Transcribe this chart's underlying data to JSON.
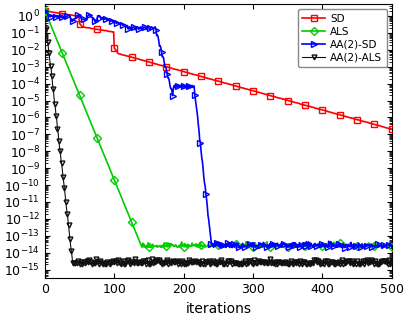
{
  "title": "",
  "xlabel": "iterations",
  "ylabel": "",
  "xlim": [
    0,
    500
  ],
  "xticks": [
    0,
    100,
    200,
    300,
    400,
    500
  ],
  "ylim": [
    3e-16,
    5.0
  ],
  "colors": {
    "SD": "#FF0000",
    "ALS": "#00CC00",
    "AA2_SD": "#0000FF",
    "AA2_ALS": "#111111"
  },
  "legend_labels": [
    "SD",
    "ALS",
    "AA(2)-SD",
    "AA(2)-ALS"
  ],
  "floor": 2e-15
}
